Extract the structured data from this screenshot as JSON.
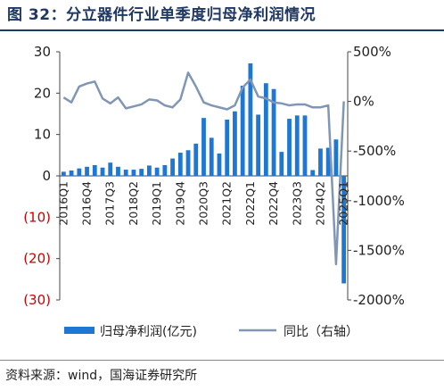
{
  "title": "图 32：分立器件行业单季度归母净利润情况",
  "source": "资料来源：wind，国海证券研究所",
  "colors": {
    "bar": "#1f77d4",
    "line": "#8096b4",
    "title": "#1f3864",
    "negative_tick": "#cc0000"
  },
  "chart_data": {
    "type": "bar+line",
    "title": "",
    "categories": [
      "2016Q1",
      "2016Q2",
      "2016Q3",
      "2016Q4",
      "2017Q1",
      "2017Q2",
      "2017Q3",
      "2017Q4",
      "2018Q1",
      "2018Q2",
      "2018Q3",
      "2018Q4",
      "2019Q1",
      "2019Q2",
      "2019Q3",
      "2019Q4",
      "2020Q1",
      "2020Q2",
      "2020Q3",
      "2020Q4",
      "2021Q1",
      "2021Q2",
      "2021Q3",
      "2021Q4",
      "2022Q1",
      "2022Q2",
      "2022Q3",
      "2022Q4",
      "2023Q1",
      "2023Q2",
      "2023Q3",
      "2023Q4",
      "2024Q1",
      "2024Q2",
      "2024Q3",
      "2024Q4",
      "2025Q1"
    ],
    "x_tick_labels": [
      "2016Q1",
      "2016Q4",
      "2017Q3",
      "2018Q2",
      "2019Q1",
      "2019Q4",
      "2020Q3",
      "2021Q2",
      "2022Q1",
      "2022Q4",
      "2023Q3",
      "2024Q2",
      "2025Q1"
    ],
    "left_axis": {
      "ylim": [
        -30,
        30
      ],
      "ticks": [
        30,
        20,
        10,
        0,
        -10,
        -20,
        -30
      ],
      "tick_labels": [
        "30",
        "20",
        "10",
        "0",
        "(10)",
        "(20)",
        "(30)"
      ]
    },
    "right_axis": {
      "ylim": [
        -2000,
        500
      ],
      "ticks": [
        500,
        0,
        -500,
        -1000,
        -1500,
        -2000
      ],
      "tick_labels": [
        "500%",
        "0%",
        "-500%",
        "-1000%",
        "-1500%",
        "-2000%"
      ]
    },
    "legend_position": "bottom",
    "grid": false,
    "series": [
      {
        "name": "归母净利润(亿元)",
        "type": "bar",
        "axis": "left",
        "values": [
          1.0,
          1.3,
          1.8,
          2.2,
          2.6,
          2.0,
          3.2,
          2.2,
          1.5,
          1.5,
          1.7,
          2.5,
          2.0,
          2.6,
          4.2,
          5.6,
          6.2,
          7.8,
          14.0,
          9.2,
          5.4,
          13.6,
          15.6,
          21.8,
          27.2,
          14.8,
          22.4,
          21.0,
          5.8,
          13.8,
          14.6,
          14.6,
          1.4,
          6.6,
          6.8,
          8.8,
          -26.0
        ]
      },
      {
        "name": "同比（右轴）",
        "type": "line",
        "axis": "right",
        "values": [
          40,
          -10,
          150,
          180,
          200,
          30,
          -20,
          40,
          -70,
          -50,
          -30,
          20,
          10,
          -40,
          -60,
          20,
          290,
          150,
          -10,
          -40,
          -60,
          -80,
          -40,
          140,
          220,
          50,
          30,
          -10,
          -20,
          -40,
          -30,
          -30,
          -60,
          -60,
          -40,
          -1640,
          0
        ]
      }
    ],
    "value_label_texts": [
      "30",
      "20",
      "10",
      "0",
      "(10)",
      "(20)",
      "(30)",
      "500%",
      "0%",
      "-500%",
      "-1000%",
      "-1500%",
      "-2000%"
    ]
  }
}
